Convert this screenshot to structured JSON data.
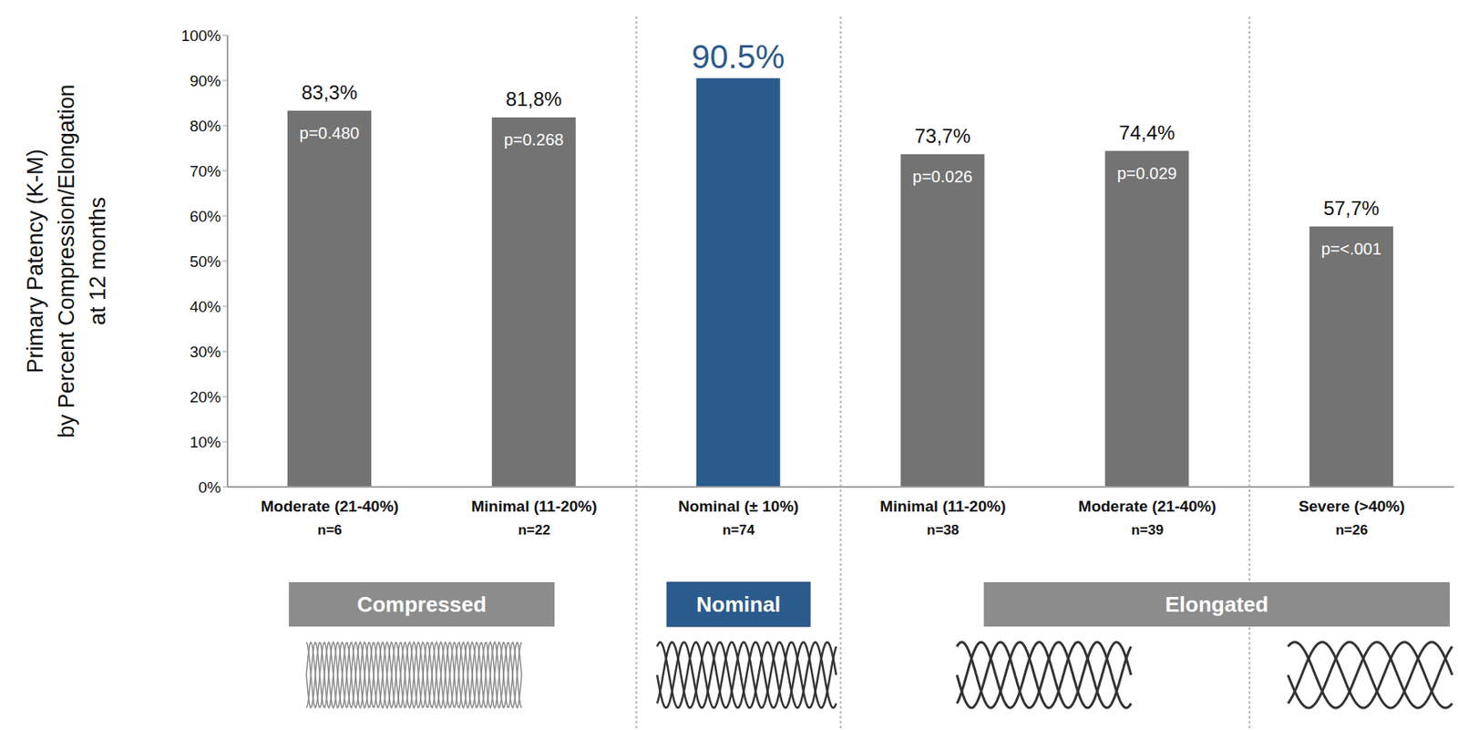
{
  "chart_data": {
    "type": "bar",
    "y_label": [
      "Primary Patency (K-M)",
      "by Percent Compression/Elongation",
      "at 12 months"
    ],
    "categories": [
      "Moderate (21-40%)",
      "Minimal (11-20%)",
      "Nominal (± 10%)",
      "Minimal (11-20%)",
      "Moderate (21-40%)",
      "Severe (>40%)"
    ],
    "n_labels": [
      "n=6",
      "n=22",
      "n=74",
      "n=38",
      "n=39",
      "n=26"
    ],
    "values": [
      83.3,
      81.8,
      90.5,
      73.7,
      74.4,
      57.7
    ],
    "value_labels": [
      "83,3%",
      "81,8%",
      "90.5%",
      "73,7%",
      "74,4%",
      "57,7%"
    ],
    "p_values": [
      "p=0.480",
      "p=0.268",
      null,
      "p=0.026",
      "p=0.029",
      "p=<.001"
    ],
    "colors": [
      "#737373",
      "#737373",
      "#2a5b8c",
      "#737373",
      "#737373",
      "#737373"
    ],
    "groups": [
      {
        "label": "Compressed",
        "first": 0,
        "last": 1,
        "color": "#8c8c8c"
      },
      {
        "label": "Nominal",
        "first": 2,
        "last": 2,
        "color": "#2a5b8c"
      },
      {
        "label": "Elongated",
        "first": 3,
        "last": 5,
        "color": "#8c8c8c"
      }
    ],
    "ylim": [
      0,
      100
    ],
    "yticks": [
      {
        "value": 0,
        "label": "0%"
      },
      {
        "value": 10,
        "label": "10%"
      },
      {
        "value": 20,
        "label": "20%"
      },
      {
        "value": 30,
        "label": "30%"
      },
      {
        "value": 40,
        "label": "40%"
      },
      {
        "value": 50,
        "label": "50%"
      },
      {
        "value": 60,
        "label": "60%"
      },
      {
        "value": 70,
        "label": "70%"
      },
      {
        "value": 80,
        "label": "80%"
      },
      {
        "value": 90,
        "label": "90%"
      },
      {
        "value": 100,
        "label": "100%"
      }
    ],
    "data_labels": true,
    "grid": false
  }
}
